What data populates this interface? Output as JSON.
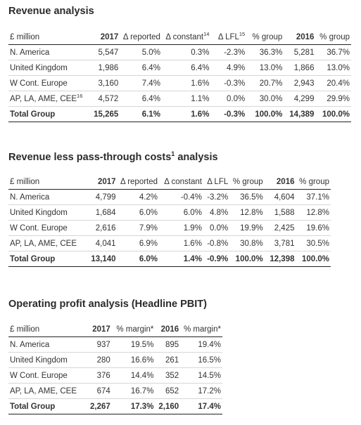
{
  "revenue": {
    "title": "Revenue analysis",
    "headers": [
      "£ million",
      "2017",
      "Δ reported",
      "Δ constant",
      "14",
      "Δ LFL",
      "15",
      "% group",
      "2016",
      "% group"
    ],
    "rows": [
      {
        "region": "N. America",
        "sup": "",
        "v2017": "5,547",
        "reported": "5.0%",
        "constant": "0.3%",
        "lfl": "-2.3%",
        "group": "36.3%",
        "v2016": "5,281",
        "group2016": "36.7%"
      },
      {
        "region": "United Kingdom",
        "sup": "",
        "v2017": "1,986",
        "reported": "6.4%",
        "constant": "6.4%",
        "lfl": "4.9%",
        "group": "13.0%",
        "v2016": "1,866",
        "group2016": "13.0%"
      },
      {
        "region": "W Cont. Europe",
        "sup": "",
        "v2017": "3,160",
        "reported": "7.4%",
        "constant": "1.6%",
        "lfl": "-0.3%",
        "group": "20.7%",
        "v2016": "2,943",
        "group2016": "20.4%"
      },
      {
        "region": "AP, LA, AME, CEE",
        "sup": "16",
        "v2017": "4,572",
        "reported": "6.4%",
        "constant": "1.1%",
        "lfl": "0.0%",
        "group": "30.0%",
        "v2016": "4,299",
        "group2016": "29.9%"
      }
    ],
    "total": {
      "region": "Total Group",
      "v2017": "15,265",
      "reported": "6.1%",
      "constant": "1.6%",
      "lfl": "-0.3%",
      "group": "100.0%",
      "v2016": "14,389",
      "group2016": "100.0%"
    }
  },
  "rlpt": {
    "title": "Revenue less pass-through costs",
    "title_sup": "1",
    "title_suffix": "analysis",
    "headers": [
      "£ million",
      "2017",
      "Δ reported",
      "Δ constant",
      "Δ LFL",
      "% group",
      "2016",
      "% group"
    ],
    "rows": [
      {
        "region": "N. America",
        "v2017": "4,799",
        "reported": "4.2%",
        "constant": "-0.4%",
        "lfl": "-3.2%",
        "group": "36.5%",
        "v2016": "4,604",
        "group2016": "37.1%"
      },
      {
        "region": "United Kingdom",
        "v2017": "1,684",
        "reported": "6.0%",
        "constant": "6.0%",
        "lfl": "4.8%",
        "group": "12.8%",
        "v2016": "1,588",
        "group2016": "12.8%"
      },
      {
        "region": "W Cont. Europe",
        "v2017": "2,616",
        "reported": "7.9%",
        "constant": "1.9%",
        "lfl": "0.0%",
        "group": "19.9%",
        "v2016": "2,425",
        "group2016": "19.6%"
      },
      {
        "region": "AP, LA, AME, CEE",
        "v2017": "4,041",
        "reported": "6.9%",
        "constant": "1.6%",
        "lfl": "-0.8%",
        "group": "30.8%",
        "v2016": "3,781",
        "group2016": "30.5%"
      }
    ],
    "total": {
      "region": "Total Group",
      "v2017": "13,140",
      "reported": "6.0%",
      "constant": "1.4%",
      "lfl": "-0.9%",
      "group": "100.0%",
      "v2016": "12,398",
      "group2016": "100.0%"
    }
  },
  "pbit": {
    "title": "Operating profit analysis (Headline PBIT)",
    "headers": [
      "£ million",
      "2017",
      "% margin*",
      "2016",
      "% margin*"
    ],
    "rows": [
      {
        "region": "N. America",
        "v2017": "937",
        "margin2017": "19.5%",
        "v2016": "895",
        "margin2016": "19.4%"
      },
      {
        "region": "United Kingdom",
        "v2017": "280",
        "margin2017": "16.6%",
        "v2016": "261",
        "margin2016": "16.5%"
      },
      {
        "region": "W Cont. Europe",
        "v2017": "376",
        "margin2017": "14.4%",
        "v2016": "352",
        "margin2016": "14.5%"
      },
      {
        "region": "AP, LA, AME, CEE",
        "v2017": "674",
        "margin2017": "16.7%",
        "v2016": "652",
        "margin2016": "17.2%"
      }
    ],
    "total": {
      "region": "Total Group",
      "v2017": "2,267",
      "margin2017": "17.3%",
      "v2016": "2,160",
      "margin2016": "17.4%"
    }
  }
}
